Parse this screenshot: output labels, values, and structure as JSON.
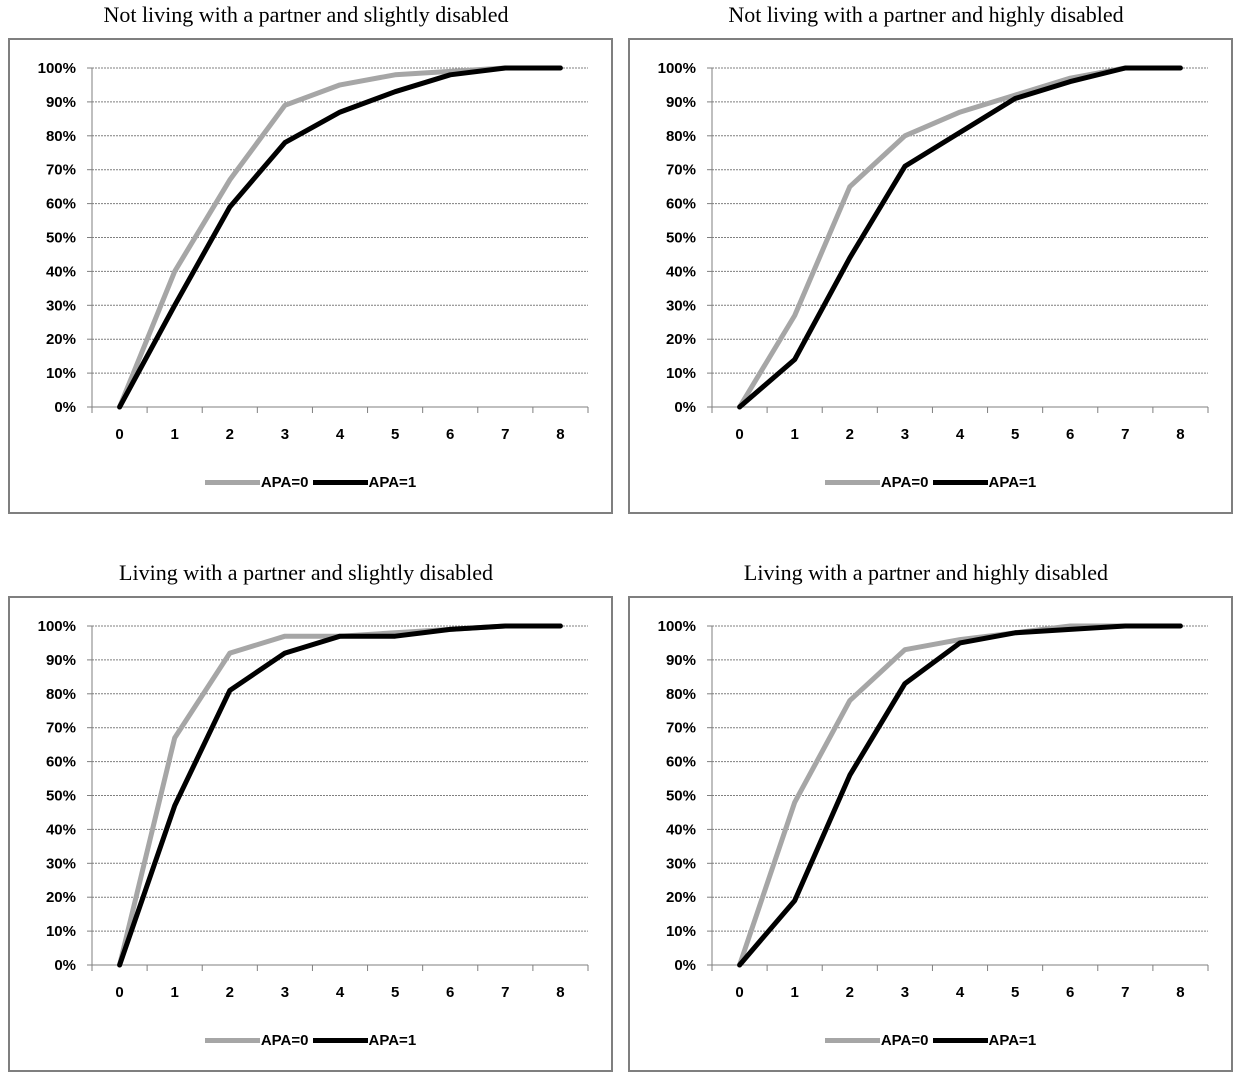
{
  "colors": {
    "APA=0": "#a6a6a6",
    "APA=1": "#000000"
  },
  "chart_data": [
    {
      "type": "line",
      "title": "Not living with a partner and slightly disabled",
      "x": [
        0,
        1,
        2,
        3,
        4,
        5,
        6,
        7,
        8
      ],
      "ylim": [
        0,
        100
      ],
      "yticks": [
        "0%",
        "10%",
        "20%",
        "30%",
        "40%",
        "50%",
        "60%",
        "70%",
        "80%",
        "90%",
        "100%"
      ],
      "grid": true,
      "legend_position": "bottom",
      "series": [
        {
          "name": "APA=0",
          "values": [
            0,
            40,
            67,
            89,
            95,
            98,
            99,
            100,
            100
          ]
        },
        {
          "name": "APA=1",
          "values": [
            0,
            30,
            59,
            78,
            87,
            93,
            98,
            100,
            100
          ]
        }
      ]
    },
    {
      "type": "line",
      "title": "Not living with a partner and highly disabled",
      "x": [
        0,
        1,
        2,
        3,
        4,
        5,
        6,
        7,
        8
      ],
      "ylim": [
        0,
        100
      ],
      "yticks": [
        "0%",
        "10%",
        "20%",
        "30%",
        "40%",
        "50%",
        "60%",
        "70%",
        "80%",
        "90%",
        "100%"
      ],
      "grid": true,
      "legend_position": "bottom",
      "series": [
        {
          "name": "APA=0",
          "values": [
            0,
            27,
            65,
            80,
            87,
            92,
            97,
            100,
            100
          ]
        },
        {
          "name": "APA=1",
          "values": [
            0,
            14,
            44,
            71,
            81,
            91,
            96,
            100,
            100
          ]
        }
      ]
    },
    {
      "type": "line",
      "title": "Living with a partner and slightly disabled",
      "x": [
        0,
        1,
        2,
        3,
        4,
        5,
        6,
        7,
        8
      ],
      "ylim": [
        0,
        100
      ],
      "yticks": [
        "0%",
        "10%",
        "20%",
        "30%",
        "40%",
        "50%",
        "60%",
        "70%",
        "80%",
        "90%",
        "100%"
      ],
      "grid": true,
      "legend_position": "bottom",
      "series": [
        {
          "name": "APA=0",
          "values": [
            0,
            67,
            92,
            97,
            97,
            98,
            99,
            100,
            100
          ]
        },
        {
          "name": "APA=1",
          "values": [
            0,
            47,
            81,
            92,
            97,
            97,
            99,
            100,
            100
          ]
        }
      ]
    },
    {
      "type": "line",
      "title": "Living with a partner and highly disabled",
      "x": [
        0,
        1,
        2,
        3,
        4,
        5,
        6,
        7,
        8
      ],
      "ylim": [
        0,
        100
      ],
      "yticks": [
        "0%",
        "10%",
        "20%",
        "30%",
        "40%",
        "50%",
        "60%",
        "70%",
        "80%",
        "90%",
        "100%"
      ],
      "grid": true,
      "legend_position": "bottom",
      "series": [
        {
          "name": "APA=0",
          "values": [
            0,
            48,
            78,
            93,
            96,
            98,
            100,
            100,
            100
          ]
        },
        {
          "name": "APA=1",
          "values": [
            0,
            19,
            56,
            83,
            95,
            98,
            99,
            100,
            100
          ]
        }
      ]
    }
  ]
}
